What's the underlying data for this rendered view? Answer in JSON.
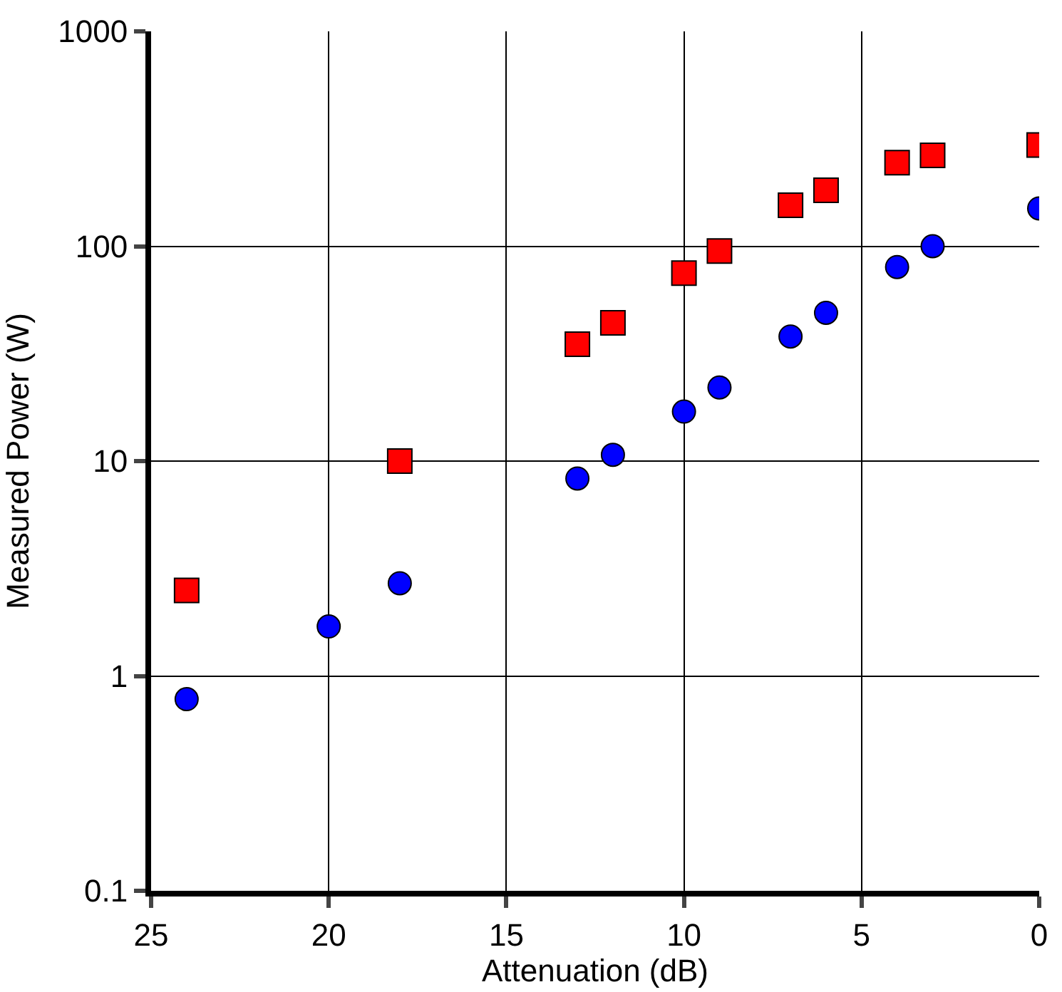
{
  "chart_data": {
    "type": "scatter",
    "xlabel": "Attenuation (dB)",
    "ylabel": "Measured Power (W)",
    "xlim": [
      25,
      0
    ],
    "xticks": [
      25,
      20,
      15,
      10,
      5,
      0
    ],
    "ylim": [
      0.1,
      1000
    ],
    "yticks": [
      0.1,
      1,
      10,
      100,
      1000
    ],
    "log": "y",
    "grid": true,
    "series": [
      {
        "color": "#ff0000",
        "marker": "square",
        "x": [
          24,
          18,
          13,
          12,
          10,
          9,
          7,
          6,
          4,
          3,
          0
        ],
        "values": [
          2.5,
          10,
          35,
          44,
          75,
          95,
          155,
          182,
          245,
          265,
          296
        ]
      },
      {
        "color": "#0000ff",
        "marker": "circle",
        "x": [
          24,
          20,
          18,
          13,
          12,
          10,
          9,
          7,
          6,
          4,
          3,
          0
        ],
        "values": [
          0.78,
          1.7,
          2.7,
          8.3,
          10.7,
          17,
          22,
          38,
          49,
          80,
          100,
          150
        ]
      }
    ]
  }
}
